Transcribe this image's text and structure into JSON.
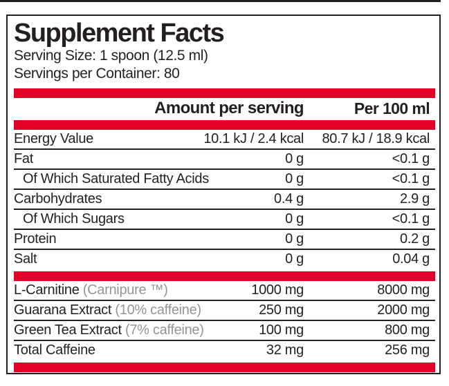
{
  "panel": {
    "title": "Supplement Facts",
    "serving_size": "Serving Size: 1 spoon (12.5 ml)",
    "servings_per_container": "Servings per Container: 80",
    "columns": {
      "amount": "Amount per serving",
      "per_100": "Per 100 ml"
    },
    "nutrients": [
      {
        "name": "Energy Value",
        "amount": "10.1 kJ / 2.4 kcal",
        "per_100": "80.7 kJ / 18.9 kcal"
      },
      {
        "name": "Fat",
        "amount": "0 g",
        "per_100": "<0.1 g"
      },
      {
        "name": "Of Which Saturated Fatty Acids",
        "amount": "0 g",
        "per_100": "<0.1 g"
      },
      {
        "name": "Carbohydrates",
        "amount": "0.4 g",
        "per_100": "2.9 g"
      },
      {
        "name": "Of Which Sugars",
        "amount": "0 g",
        "per_100": "<0.1 g"
      },
      {
        "name": "Protein",
        "amount": "0 g",
        "per_100": "0.2 g"
      },
      {
        "name": "Salt",
        "amount": "0 g",
        "per_100": "0.04 g"
      }
    ],
    "ingredients": [
      {
        "name": "L-Carnitine",
        "note": "(Carnipure ™)",
        "amount": "1000 mg",
        "per_100": "8000 mg"
      },
      {
        "name": "Guarana Extract",
        "note": "(10% caffeine)",
        "amount": "250 mg",
        "per_100": "2000 mg"
      },
      {
        "name": "Green Tea Extract",
        "note": "(7% caffeine)",
        "amount": "100 mg",
        "per_100": "800 mg"
      },
      {
        "name": "Total Caffeine",
        "note": "",
        "amount": "32 mg",
        "per_100": "256 mg"
      }
    ],
    "colors": {
      "accent_red": "#e20228",
      "ink": "#231f20",
      "note_gray": "#949494"
    }
  }
}
